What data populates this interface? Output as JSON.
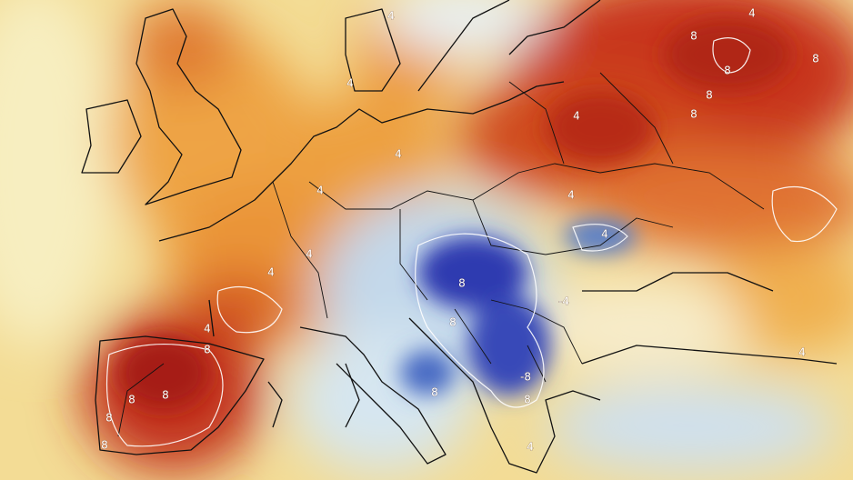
{
  "contour_labels": [
    "4",
    "4",
    "8",
    "8",
    "8",
    "4",
    "4",
    "8",
    "8",
    "4",
    "4",
    "4",
    "4",
    "4",
    "4",
    "8",
    "-4",
    "4",
    "8",
    "8",
    "8",
    "8",
    "8",
    "-8",
    "8",
    "8",
    "4",
    "4",
    "8"
  ]
}
